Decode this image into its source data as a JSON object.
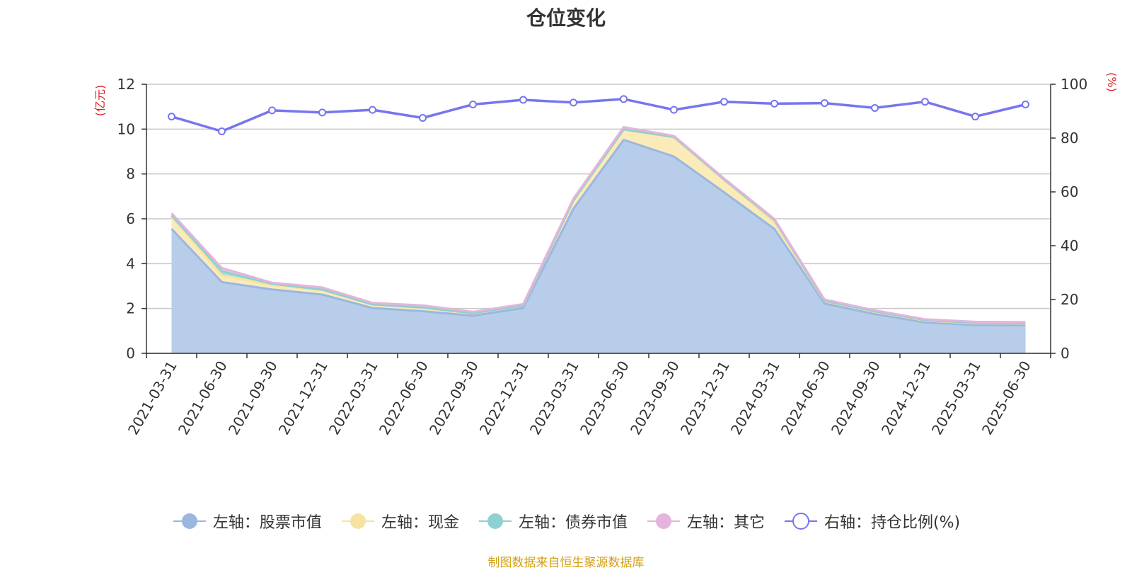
{
  "chart_data": {
    "type": "area",
    "title": "仓位变化",
    "categories": [
      "2021-03-31",
      "2021-06-30",
      "2021-09-30",
      "2021-12-31",
      "2022-03-31",
      "2022-06-30",
      "2022-09-30",
      "2022-12-31",
      "2023-03-31",
      "2023-06-30",
      "2023-09-30",
      "2023-12-31",
      "2024-03-31",
      "2024-06-30",
      "2024-09-30",
      "2024-12-31",
      "2025-03-31",
      "2025-06-30"
    ],
    "left_axis": {
      "unit": "(亿元)",
      "range": [
        0,
        12
      ],
      "ticks": [
        "0",
        "2",
        "4",
        "6",
        "8",
        "10",
        "12"
      ]
    },
    "right_axis": {
      "unit": "(%)",
      "range": [
        0,
        100
      ],
      "ticks": [
        "0",
        "20",
        "40",
        "60",
        "80",
        "100"
      ]
    },
    "stacked": true,
    "series": [
      {
        "name": "左轴：股票市值",
        "axis": "left",
        "type": "area",
        "color": "#9bb7e0",
        "fill": "#b7cdea",
        "values": [
          5.55,
          3.18,
          2.85,
          2.62,
          2.02,
          1.88,
          1.68,
          2.02,
          6.45,
          9.52,
          8.78,
          7.18,
          5.55,
          2.22,
          1.75,
          1.38,
          1.26,
          1.25
        ]
      },
      {
        "name": "左轴：现金",
        "axis": "left",
        "type": "area",
        "color": "#f6e3a1",
        "fill": "#faebb8",
        "values": [
          0.55,
          0.3,
          0.2,
          0.2,
          0.15,
          0.15,
          0.1,
          0.1,
          0.35,
          0.45,
          0.85,
          0.55,
          0.3,
          0.1,
          0.1,
          0.08,
          0.08,
          0.08
        ]
      },
      {
        "name": "左轴：债券市值",
        "axis": "left",
        "type": "area",
        "color": "#8fd0d0",
        "fill": "#a9dcdc",
        "values": [
          0.05,
          0.18,
          0.05,
          0.02,
          0.01,
          0.01,
          0.01,
          0.01,
          0.02,
          0.02,
          0.02,
          0.02,
          0.1,
          0.02,
          0.02,
          0.02,
          0.02,
          0.02
        ]
      },
      {
        "name": "左轴：其它",
        "axis": "left",
        "type": "area",
        "color": "#e5b4dc",
        "fill": "#eec6e6",
        "values": [
          0.1,
          0.15,
          0.05,
          0.1,
          0.07,
          0.1,
          0.06,
          0.07,
          0.08,
          0.1,
          0.05,
          0.05,
          0.05,
          0.06,
          0.05,
          0.04,
          0.05,
          0.05
        ]
      },
      {
        "name": "右轴：持仓比例(%)",
        "axis": "right",
        "type": "line",
        "color": "#7676ee",
        "values": [
          88.0,
          82.5,
          90.3,
          89.5,
          90.5,
          87.5,
          92.5,
          94.2,
          93.2,
          94.5,
          90.5,
          93.5,
          92.8,
          93.0,
          91.2,
          93.5,
          88.0,
          92.5
        ]
      }
    ]
  },
  "footer": {
    "source": "制图数据来自恒生聚源数据库"
  }
}
